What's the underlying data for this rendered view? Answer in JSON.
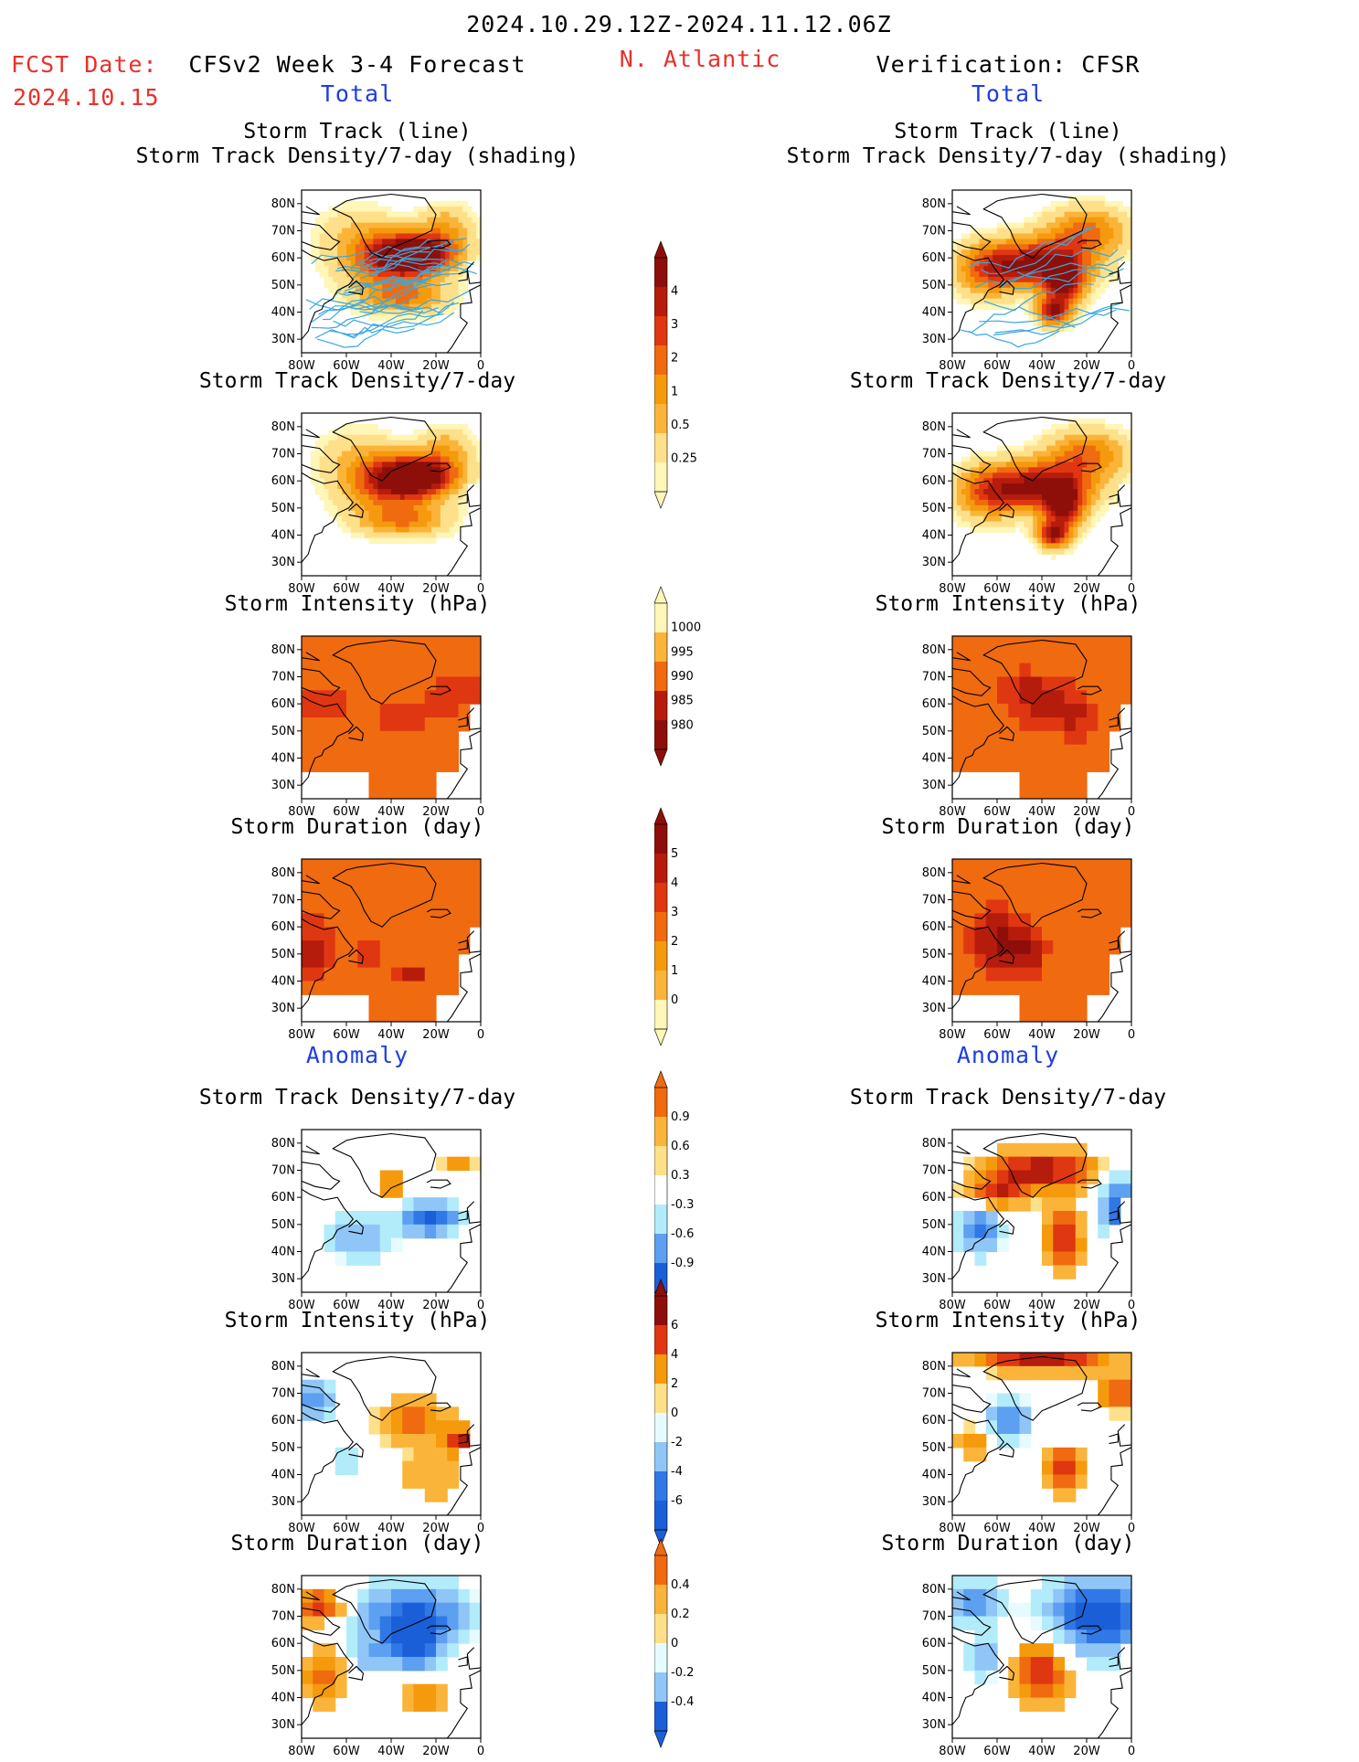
{
  "header": {
    "date_range": "2024.10.29.12Z-2024.11.12.06Z",
    "fcst_label": "FCST Date:",
    "fcst_date": "2024.10.15",
    "forecast_title": "CFSv2 Week 3-4 Forecast",
    "region": "N. Atlantic",
    "verification_title": "Verification: CFSR"
  },
  "sections": {
    "total": "Total",
    "anomaly": "Anomaly"
  },
  "axes": {
    "lat_ticks": [
      "80N",
      "70N",
      "60N",
      "50N",
      "40N",
      "30N"
    ],
    "lon_ticks": [
      "80W",
      "60W",
      "40W",
      "20W",
      "0"
    ]
  },
  "colorbars": [
    {
      "labels": [
        "4",
        "3",
        "2",
        "1",
        "0.5",
        "0.25"
      ]
    },
    {
      "labels": [
        "1000",
        "995",
        "990",
        "985",
        "980"
      ]
    },
    {
      "labels": [
        "5",
        "4",
        "3",
        "2",
        "1",
        "0"
      ]
    },
    {
      "labels": [
        "0.9",
        "0.6",
        "0.3",
        "-0.3",
        "-0.6",
        "-0.9"
      ]
    },
    {
      "labels": [
        "6",
        "4",
        "2",
        "0",
        "-2",
        "-4",
        "-6"
      ]
    },
    {
      "labels": [
        "0.4",
        "0.2",
        "0",
        "-0.2",
        "-0.4"
      ]
    }
  ],
  "panels": {
    "fc_track": {
      "title1": "Storm Track (line)",
      "title2": "Storm Track Density/7-day (shading)"
    },
    "fc_density": {
      "title": "Storm Track Density/7-day"
    },
    "fc_intensity": {
      "title": "Storm Intensity (hPa)"
    },
    "fc_duration": {
      "title": "Storm Duration (day)"
    },
    "fc_anom_density": {
      "title": "Storm Track Density/7-day"
    },
    "fc_anom_intensity": {
      "title": "Storm Intensity (hPa)"
    },
    "fc_anom_duration": {
      "title": "Storm Duration (day)"
    },
    "vf_track": {
      "title1": "Storm Track (line)",
      "title2": "Storm Track Density/7-day (shading)"
    },
    "vf_density": {
      "title": "Storm Track Density/7-day"
    },
    "vf_intensity": {
      "title": "Storm Intensity (hPa)"
    },
    "vf_duration": {
      "title": "Storm Duration (day)"
    },
    "vf_anom_density": {
      "title": "Storm Track Density/7-day"
    },
    "vf_anom_intensity": {
      "title": "Storm Intensity (hPa)"
    },
    "vf_anom_duration": {
      "title": "Storm Duration (day)"
    }
  },
  "colors": {
    "pos": [
      "#fff6b8",
      "#ffe08a",
      "#fbb43a",
      "#f59a0c",
      "#f06a10",
      "#df3712",
      "#b51c0c",
      "#8e0f0a"
    ],
    "neg": [
      "#e6fbff",
      "#b2ecfb",
      "#8fc6f7",
      "#5d9ff0",
      "#2f78e6",
      "#1b5fd8"
    ],
    "track_line": "#3aa8e0",
    "header_red": "#e8302a",
    "header_blue": "#1f3ee0"
  }
}
